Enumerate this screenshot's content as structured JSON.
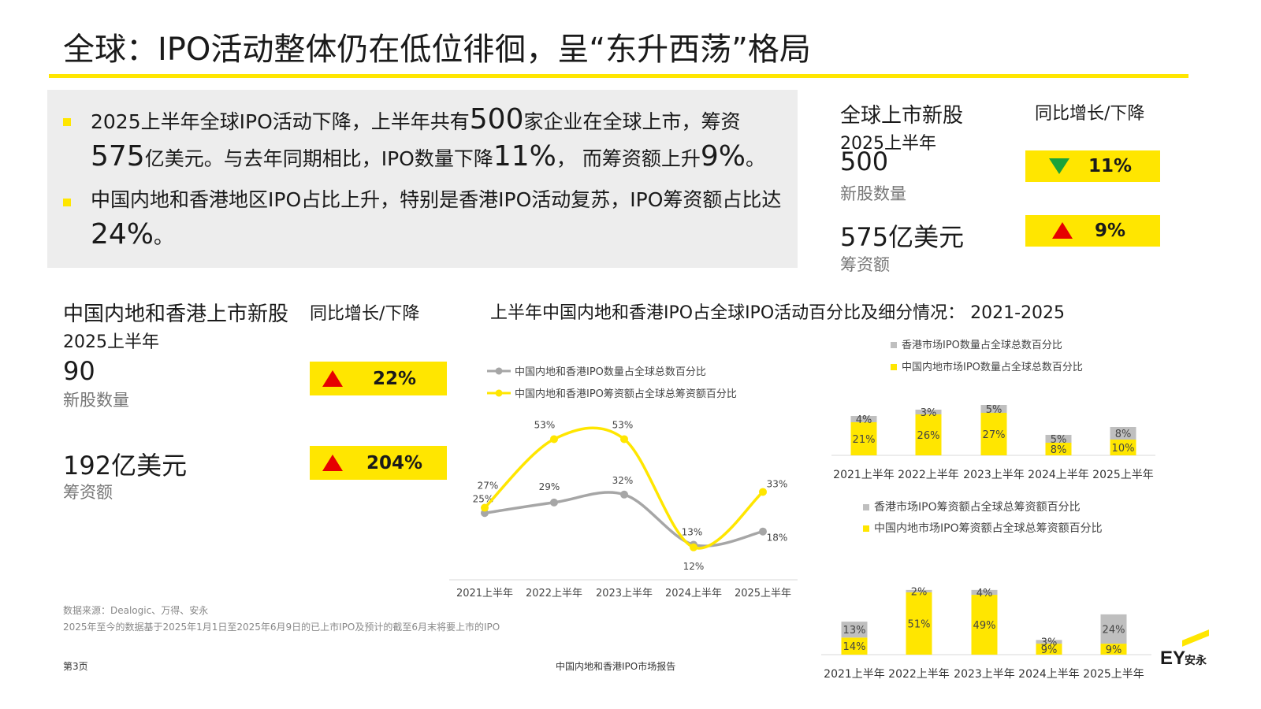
{
  "title": "全球：IPO活动整体仍在低位徘徊，呈“东升西荡”格局",
  "summary": {
    "b1_p1": "2025上半年全球IPO活动下降，上半年共有",
    "b1_n1": "500",
    "b1_p2": "家企业在全球上市，筹资",
    "b1_n2": "575",
    "b1_p3": "亿美元。与去年同期相比，IPO数量下降",
    "b1_n3": "11%",
    "b1_p4": "， 而筹资额上升",
    "b1_n4": "9%",
    "b1_p5": "。",
    "b2_p1": "中国内地和香港地区IPO占比上升，特别是香港IPO活动复苏，IPO筹资额占比达",
    "b2_n1": "24%",
    "b2_p2": "。"
  },
  "global": {
    "header": "全球上市新股",
    "yoy_header": "同比增长/下降",
    "period": "2025上半年",
    "count": "500",
    "count_label": "新股数量",
    "amount": "575亿美元",
    "amount_label": "筹资额",
    "count_change": "11%",
    "count_direction": "down",
    "amount_change": "9%",
    "amount_direction": "up"
  },
  "china": {
    "header": "中国内地和香港上市新股",
    "yoy_header": "同比增长/下降",
    "period": "2025上半年",
    "count": "90",
    "count_label": "新股数量",
    "amount": "192亿美元",
    "amount_label": "筹资额",
    "count_change": "22%",
    "count_direction": "up",
    "amount_change": "204%",
    "amount_direction": "up"
  },
  "colors": {
    "yellow": "#ffe600",
    "gray": "#a6a6a6",
    "up": "#e60000",
    "down": "#1aa33a"
  },
  "chart_section_title": "上半年中国内地和香港IPO占全球IPO活动百分比及细分情况： 2021-2025",
  "chart_data": [
    {
      "type": "line",
      "categories": [
        "2021上半年",
        "2022上半年",
        "2023上半年",
        "2024上半年",
        "2025上半年"
      ],
      "series": [
        {
          "name": "中国内地和香港IPO数量占全球总数百分比",
          "values": [
            25,
            29,
            32,
            13,
            18
          ],
          "labels": [
            "25%",
            "29%",
            "32%",
            "13%",
            "18%"
          ],
          "color": "#a6a6a6"
        },
        {
          "name": "中国内地和香港IPO筹资额占全球总筹资额百分比",
          "values": [
            27,
            53,
            53,
            12,
            33
          ],
          "labels": [
            "27%",
            "53%",
            "53%",
            "12%",
            "33%"
          ],
          "color": "#ffe600"
        }
      ],
      "ylim": [
        0,
        60
      ],
      "legend": "top-left",
      "grid": false
    },
    {
      "type": "bar",
      "stacked": true,
      "categories": [
        "2021上半年",
        "2022上半年",
        "2023上半年",
        "2024上半年",
        "2025上半年"
      ],
      "series": [
        {
          "name": "中国内地市场IPO数量占全球总数百分比",
          "values": [
            21,
            26,
            27,
            8,
            10
          ],
          "labels": [
            "21%",
            "26%",
            "27%",
            "8%",
            "10%"
          ],
          "color": "#ffe600"
        },
        {
          "name": "香港市场IPO数量占全球总数百分比",
          "values": [
            4,
            3,
            5,
            5,
            8
          ],
          "labels": [
            "4%",
            "3%",
            "5%",
            "5%",
            "8%"
          ],
          "color": "#bfbfbf"
        }
      ],
      "legend": "top",
      "grid": false
    },
    {
      "type": "bar",
      "stacked": true,
      "categories": [
        "2021上半年",
        "2022上半年",
        "2023上半年",
        "2024上半年",
        "2025上半年"
      ],
      "series": [
        {
          "name": "中国内地市场IPO筹资额占全球总筹资额百分比",
          "values": [
            14,
            51,
            49,
            9,
            9
          ],
          "labels": [
            "14%",
            "51%",
            "49%",
            "9%",
            "9%"
          ],
          "color": "#ffe600"
        },
        {
          "name": "香港市场IPO筹资额占全球总筹资额百分比",
          "values": [
            13,
            2,
            4,
            3,
            24
          ],
          "labels": [
            "13%",
            "2%",
            "4%",
            "3%",
            "24%"
          ],
          "color": "#bfbfbf"
        }
      ],
      "legend": "top",
      "grid": false
    }
  ],
  "source_line1": "数据来源：Dealogic、万得、安永",
  "source_line2": "2025年至今的数据基于2025年1月1日至2025年6月9日的已上市IPO及预计的截至6月末将要上市的IPO",
  "page_number": "第3页",
  "footer_title": "中国内地和香港IPO市场报告",
  "logo": {
    "mark": "EY",
    "cn": "安永"
  }
}
